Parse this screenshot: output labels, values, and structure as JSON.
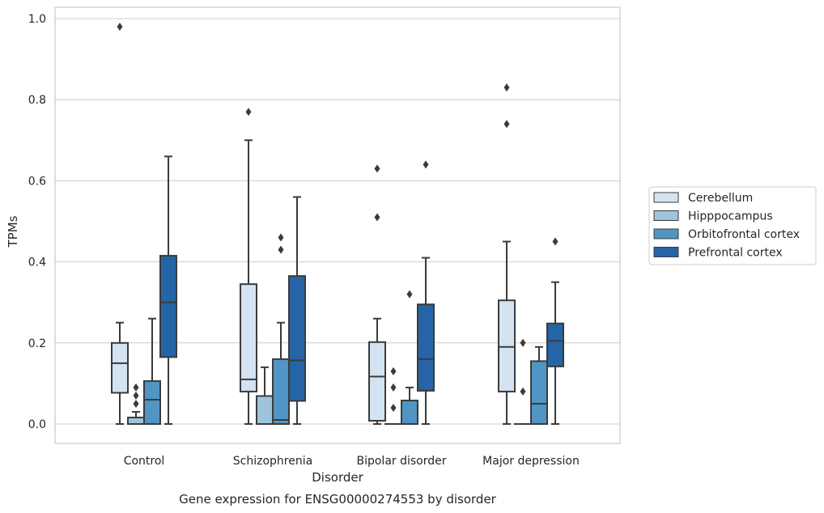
{
  "chart_data": {
    "type": "boxplot",
    "caption": "Gene expression for ENSG00000274553 by disorder",
    "xlabel": "Disorder",
    "ylabel": "TPMs",
    "ylim": [
      -0.045,
      1.03
    ],
    "yticks": [
      0.0,
      0.2,
      0.4,
      0.6,
      0.8,
      1.0
    ],
    "ytick_labels": [
      "0.0",
      "0.2",
      "0.4",
      "0.6",
      "0.8",
      "1.0"
    ],
    "grid": true,
    "legend_position": "right",
    "categories": [
      "Control",
      "Schizophrenia",
      "Bipolar disorder",
      "Major depression"
    ],
    "series": [
      {
        "name": "Cerebellum",
        "color": "#d4e3f2",
        "boxes": [
          {
            "whislo": 0.0,
            "q1": 0.077,
            "med": 0.15,
            "q3": 0.2,
            "whishi": 0.25,
            "fliers": [
              0.98
            ]
          },
          {
            "whislo": 0.0,
            "q1": 0.08,
            "med": 0.11,
            "q3": 0.345,
            "whishi": 0.7,
            "fliers": [
              0.77
            ]
          },
          {
            "whislo": 0.0,
            "q1": 0.008,
            "med": 0.117,
            "q3": 0.202,
            "whishi": 0.26,
            "fliers": [
              0.51,
              0.63
            ]
          },
          {
            "whislo": 0.0,
            "q1": 0.08,
            "med": 0.19,
            "q3": 0.305,
            "whishi": 0.45,
            "fliers": [
              0.74,
              0.83
            ]
          }
        ]
      },
      {
        "name": "Hipppocampus",
        "color": "#9dc4dc",
        "boxes": [
          {
            "whislo": 0.0,
            "q1": 0.0,
            "med": 0.0,
            "q3": 0.016,
            "whishi": 0.03,
            "fliers": [
              0.05,
              0.07,
              0.09
            ]
          },
          {
            "whislo": 0.0,
            "q1": 0.0,
            "med": 0.0,
            "q3": 0.069,
            "whishi": 0.14,
            "fliers": []
          },
          {
            "whislo": 0.0,
            "q1": 0.0,
            "med": 0.0,
            "q3": 0.0,
            "whishi": 0.0,
            "fliers": [
              0.04,
              0.09,
              0.13
            ]
          },
          {
            "whislo": 0.0,
            "q1": 0.0,
            "med": 0.0,
            "q3": 0.0,
            "whishi": 0.0,
            "fliers": [
              0.08,
              0.2
            ]
          }
        ]
      },
      {
        "name": "Orbitofrontal cortex",
        "color": "#5095c3",
        "boxes": [
          {
            "whislo": 0.0,
            "q1": 0.0,
            "med": 0.06,
            "q3": 0.106,
            "whishi": 0.26,
            "fliers": []
          },
          {
            "whislo": 0.0,
            "q1": 0.0,
            "med": 0.01,
            "q3": 0.16,
            "whishi": 0.25,
            "fliers": [
              0.43,
              0.46
            ]
          },
          {
            "whislo": 0.0,
            "q1": 0.0,
            "med": 0.0,
            "q3": 0.058,
            "whishi": 0.09,
            "fliers": [
              0.32
            ]
          },
          {
            "whislo": 0.0,
            "q1": 0.0,
            "med": 0.05,
            "q3": 0.155,
            "whishi": 0.19,
            "fliers": []
          }
        ]
      },
      {
        "name": "Prefrontal cortex",
        "color": "#2565a7",
        "boxes": [
          {
            "whislo": 0.0,
            "q1": 0.165,
            "med": 0.3,
            "q3": 0.415,
            "whishi": 0.66,
            "fliers": []
          },
          {
            "whislo": 0.0,
            "q1": 0.057,
            "med": 0.157,
            "q3": 0.365,
            "whishi": 0.56,
            "fliers": []
          },
          {
            "whislo": 0.0,
            "q1": 0.082,
            "med": 0.16,
            "q3": 0.295,
            "whishi": 0.41,
            "fliers": [
              0.64
            ]
          },
          {
            "whislo": 0.0,
            "q1": 0.142,
            "med": 0.205,
            "q3": 0.248,
            "whishi": 0.35,
            "fliers": [
              0.45
            ]
          }
        ]
      }
    ]
  }
}
